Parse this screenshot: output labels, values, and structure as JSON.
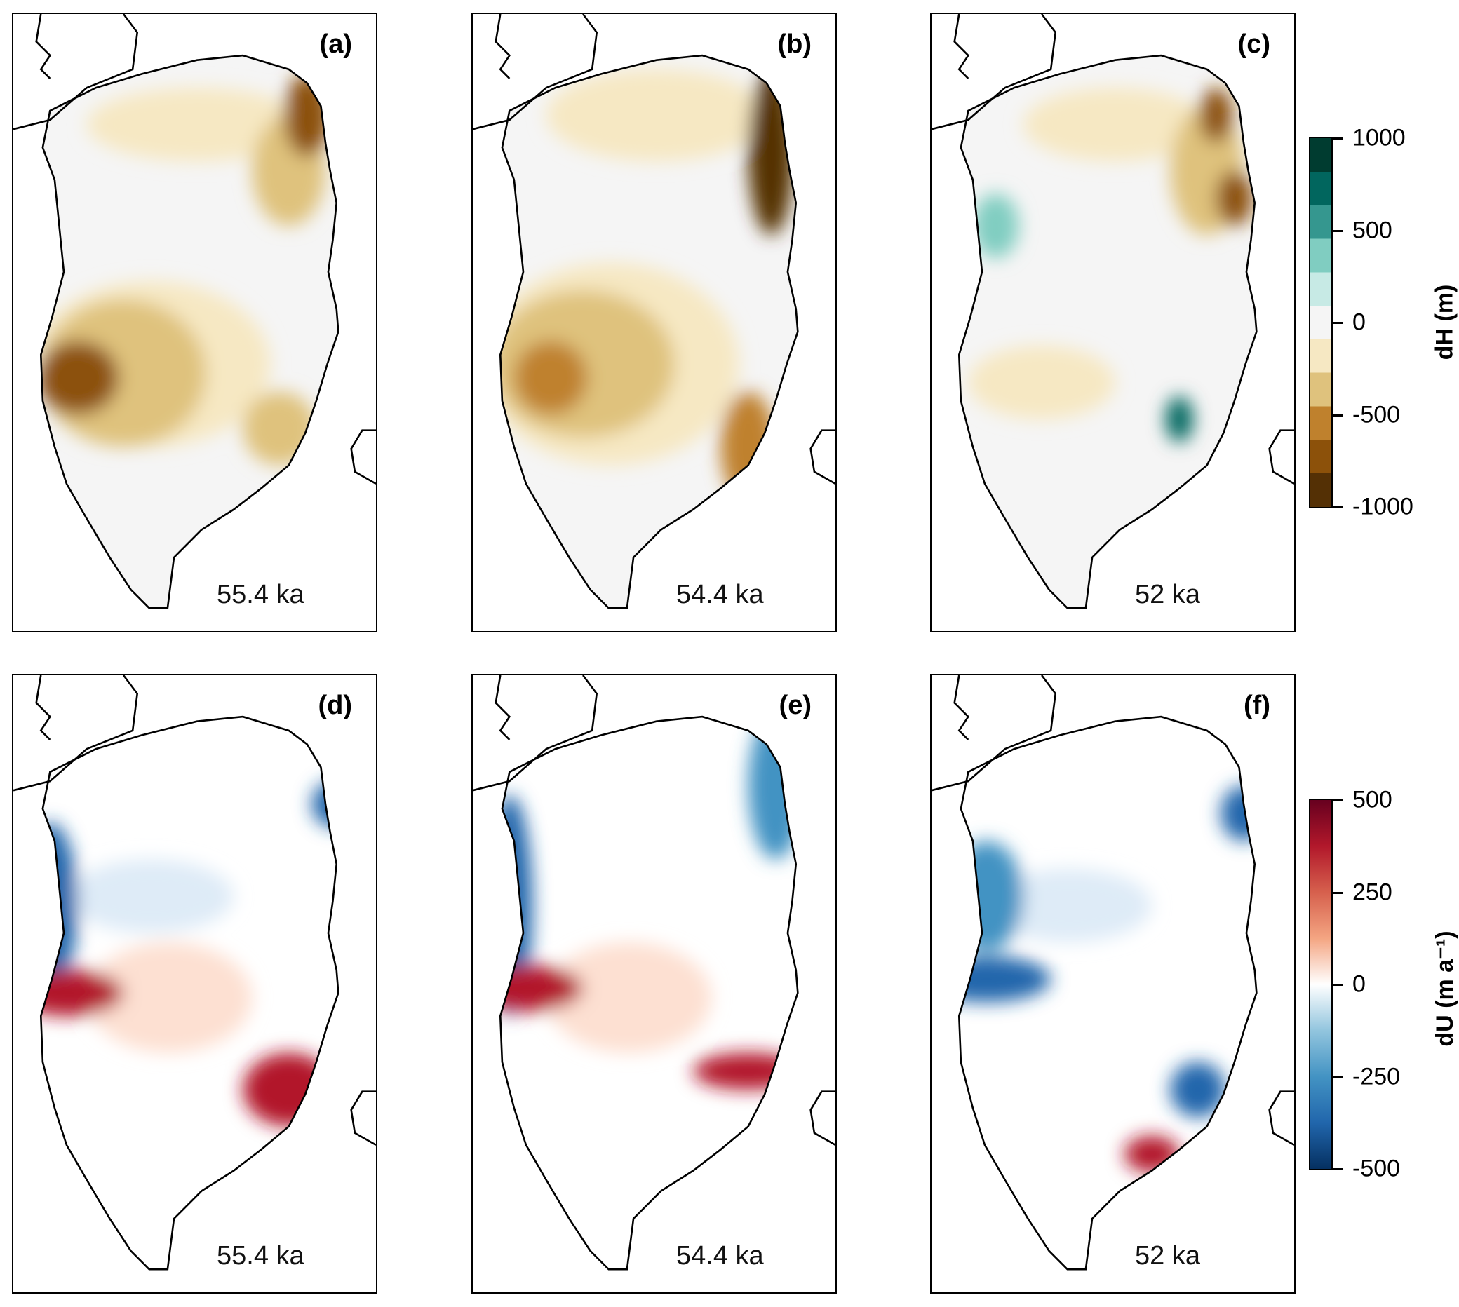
{
  "panels": [
    {
      "id": "a",
      "label": "(a)",
      "time": "55.4 ka",
      "field": "dH"
    },
    {
      "id": "b",
      "label": "(b)",
      "time": "54.4 ka",
      "field": "dH"
    },
    {
      "id": "c",
      "label": "(c)",
      "time": "52 ka",
      "field": "dH"
    },
    {
      "id": "d",
      "label": "(d)",
      "time": "55.4 ka",
      "field": "dU"
    },
    {
      "id": "e",
      "label": "(e)",
      "time": "54.4 ka",
      "field": "dU"
    },
    {
      "id": "f",
      "label": "(f)",
      "time": "52 ka",
      "field": "dU"
    }
  ],
  "colorbars": {
    "dH": {
      "title": "dH (m)",
      "ticks": [
        "1000",
        "500",
        "0",
        "-500",
        "-1000"
      ],
      "range": [
        -1000,
        1000
      ],
      "colors": [
        "#543005",
        "#8c510a",
        "#bf812d",
        "#dfc27d",
        "#f6e8c3",
        "#f5f5f5",
        "#c7eae5",
        "#80cdc1",
        "#35978f",
        "#01665e",
        "#003c30"
      ]
    },
    "dU": {
      "title": "dU (m a⁻¹)",
      "ticks": [
        "500",
        "250",
        "0",
        "-250",
        "-500"
      ],
      "range": [
        -500,
        500
      ],
      "colors": [
        "#053061",
        "#2166ac",
        "#4393c3",
        "#92c5de",
        "#ffffff",
        "#f4a582",
        "#d6604d",
        "#b2182b",
        "#67001f"
      ]
    }
  }
}
